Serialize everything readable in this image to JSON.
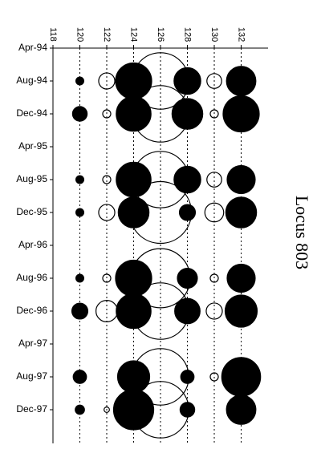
{
  "chart_data": {
    "type": "bubble",
    "title": "Locus 803",
    "x_ticks": [
      118,
      120,
      122,
      124,
      126,
      128,
      130,
      132
    ],
    "xlim": [
      118,
      134
    ],
    "y_categories": [
      "Apr-94",
      "Aug-94",
      "Dec-94",
      "Apr-95",
      "Aug-95",
      "Dec-95",
      "Apr-96",
      "Aug-96",
      "Dec-96",
      "Apr-97",
      "Aug-97",
      "Dec-97"
    ],
    "grid": "vertical dotted lines at each tick",
    "legend": "none",
    "series": [
      {
        "style": "filled",
        "color": "#000000",
        "points": [
          {
            "y": "Aug-94",
            "x": 120,
            "r": 0.3
          },
          {
            "y": "Aug-94",
            "x": 124,
            "r": 1.35
          },
          {
            "y": "Aug-94",
            "x": 128,
            "r": 1.0
          },
          {
            "y": "Aug-94",
            "x": 132,
            "r": 1.1
          },
          {
            "y": "Dec-94",
            "x": 120,
            "r": 0.55
          },
          {
            "y": "Dec-94",
            "x": 124,
            "r": 1.3
          },
          {
            "y": "Dec-94",
            "x": 128,
            "r": 1.15
          },
          {
            "y": "Dec-94",
            "x": 132,
            "r": 1.35
          },
          {
            "y": "Aug-95",
            "x": 120,
            "r": 0.3
          },
          {
            "y": "Aug-95",
            "x": 124,
            "r": 1.3
          },
          {
            "y": "Aug-95",
            "x": 128,
            "r": 1.0
          },
          {
            "y": "Aug-95",
            "x": 132,
            "r": 1.05
          },
          {
            "y": "Dec-95",
            "x": 120,
            "r": 0.3
          },
          {
            "y": "Dec-95",
            "x": 124,
            "r": 1.15
          },
          {
            "y": "Dec-95",
            "x": 128,
            "r": 0.6
          },
          {
            "y": "Dec-95",
            "x": 132,
            "r": 1.15
          },
          {
            "y": "Aug-96",
            "x": 120,
            "r": 0.3
          },
          {
            "y": "Aug-96",
            "x": 124,
            "r": 1.35
          },
          {
            "y": "Aug-96",
            "x": 128,
            "r": 0.75
          },
          {
            "y": "Aug-96",
            "x": 132,
            "r": 1.05
          },
          {
            "y": "Dec-96",
            "x": 120,
            "r": 0.6
          },
          {
            "y": "Dec-96",
            "x": 124,
            "r": 1.3
          },
          {
            "y": "Dec-96",
            "x": 128,
            "r": 0.95
          },
          {
            "y": "Dec-96",
            "x": 132,
            "r": 1.2
          },
          {
            "y": "Aug-97",
            "x": 120,
            "r": 0.5
          },
          {
            "y": "Aug-97",
            "x": 124,
            "r": 1.2
          },
          {
            "y": "Aug-97",
            "x": 128,
            "r": 0.5
          },
          {
            "y": "Aug-97",
            "x": 132,
            "r": 1.45
          },
          {
            "y": "Dec-97",
            "x": 120,
            "r": 0.35
          },
          {
            "y": "Dec-97",
            "x": 124,
            "r": 1.5
          },
          {
            "y": "Dec-97",
            "x": 128,
            "r": 0.55
          },
          {
            "y": "Dec-97",
            "x": 132,
            "r": 1.1
          }
        ]
      },
      {
        "style": "hollow",
        "color": "#000000",
        "points": [
          {
            "y": "Aug-94",
            "x": 122,
            "r": 0.6
          },
          {
            "y": "Aug-94",
            "x": 126,
            "r": 2.1
          },
          {
            "y": "Aug-94",
            "x": 130,
            "r": 0.55
          },
          {
            "y": "Dec-94",
            "x": 122,
            "r": 0.3
          },
          {
            "y": "Dec-94",
            "x": 126,
            "r": 2.1
          },
          {
            "y": "Dec-94",
            "x": 130,
            "r": 0.3
          },
          {
            "y": "Aug-95",
            "x": 122,
            "r": 0.3
          },
          {
            "y": "Aug-95",
            "x": 126,
            "r": 2.1
          },
          {
            "y": "Aug-95",
            "x": 130,
            "r": 0.55
          },
          {
            "y": "Dec-95",
            "x": 122,
            "r": 0.6
          },
          {
            "y": "Dec-95",
            "x": 126,
            "r": 2.3
          },
          {
            "y": "Dec-95",
            "x": 130,
            "r": 0.7
          },
          {
            "y": "Aug-96",
            "x": 122,
            "r": 0.3
          },
          {
            "y": "Aug-96",
            "x": 126,
            "r": 2.2
          },
          {
            "y": "Aug-96",
            "x": 130,
            "r": 0.3
          },
          {
            "y": "Dec-96",
            "x": 122,
            "r": 0.8
          },
          {
            "y": "Dec-96",
            "x": 126,
            "r": 2.1
          },
          {
            "y": "Dec-96",
            "x": 130,
            "r": 0.6
          },
          {
            "y": "Aug-97",
            "x": 126,
            "r": 2.1
          },
          {
            "y": "Aug-97",
            "x": 130,
            "r": 0.3
          },
          {
            "y": "Dec-97",
            "x": 122,
            "r": 0.2
          },
          {
            "y": "Dec-97",
            "x": 126,
            "r": 2.1
          }
        ]
      }
    ]
  }
}
